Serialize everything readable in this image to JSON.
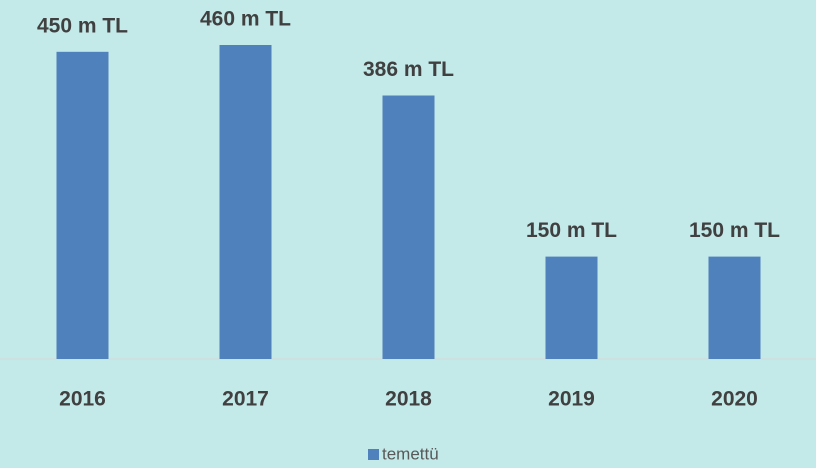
{
  "chart_data": {
    "type": "bar",
    "categories": [
      "2016",
      "2017",
      "2018",
      "2019",
      "2020"
    ],
    "series": [
      {
        "name": "temettü",
        "color": "#4f81bd",
        "values": [
          450,
          460,
          386,
          150,
          150
        ],
        "value_labels": [
          "450 m TL",
          "460 m TL",
          "386 m TL",
          "150 m TL",
          "150 m TL"
        ]
      }
    ],
    "legend": "bottom"
  }
}
